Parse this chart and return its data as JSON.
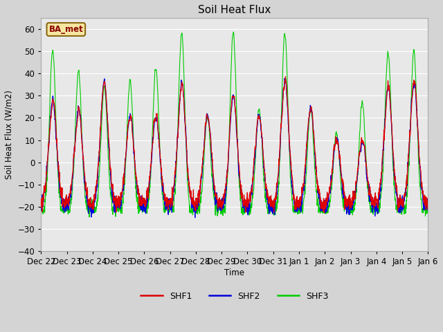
{
  "title": "Soil Heat Flux",
  "ylabel": "Soil Heat Flux (W/m2)",
  "xlabel": "Time",
  "ylim": [
    -40,
    65
  ],
  "xlim": [
    0,
    15
  ],
  "tick_labels": [
    "Dec 22",
    "Dec 23",
    "Dec 24",
    "Dec 25",
    "Dec 26",
    "Dec 27",
    "Dec 28",
    "Dec 29",
    "Dec 30",
    "Dec 31",
    "Jan 1",
    "Jan 2",
    "Jan 3",
    "Jan 4",
    "Jan 5",
    "Jan 6"
  ],
  "yticks": [
    -40,
    -30,
    -20,
    -10,
    0,
    10,
    20,
    30,
    40,
    50,
    60
  ],
  "colors": {
    "SHF1": "#dd0000",
    "SHF2": "#0000dd",
    "SHF3": "#00cc00"
  },
  "legend_label": "BA_met",
  "fig_bg_color": "#d4d4d4",
  "plot_bg_color": "#e8e8e8",
  "grid_color": "#ffffff",
  "day_peaks_shf12": [
    29,
    24,
    36,
    21,
    21,
    36,
    21,
    30,
    21,
    38,
    24,
    10,
    10,
    35,
    37
  ],
  "day_peaks_shf3": [
    51,
    41,
    34,
    37,
    42,
    58,
    21,
    58,
    24,
    58,
    24,
    13,
    27,
    50,
    50
  ],
  "night_base": -20
}
